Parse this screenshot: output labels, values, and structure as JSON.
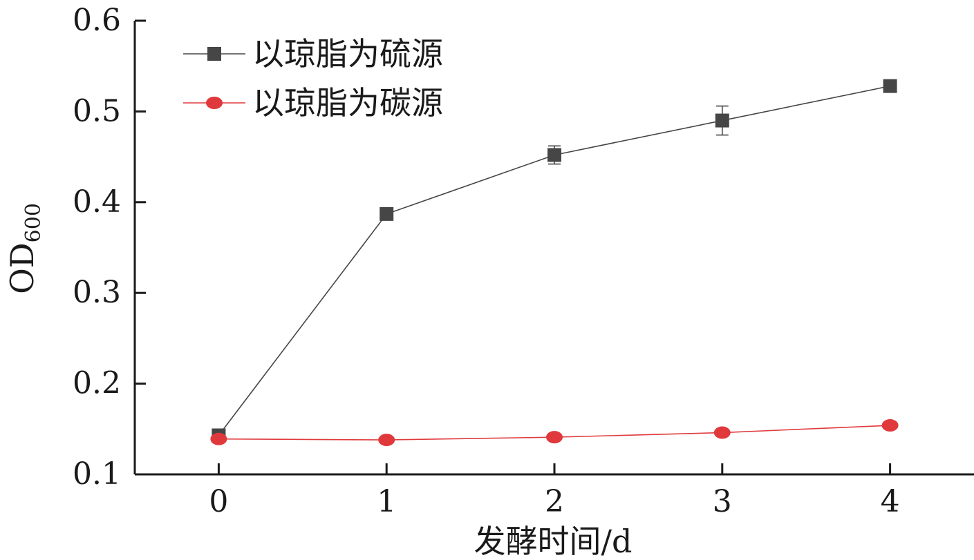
{
  "chart_data": {
    "type": "line",
    "x": [
      0,
      1,
      2,
      3,
      4
    ],
    "xlabel": "发酵时间/d",
    "ylabel_main": "OD",
    "ylabel_sub": "600",
    "xlim": [
      -0.5,
      4.5
    ],
    "ylim": [
      0.1,
      0.6
    ],
    "xticks": [
      "0",
      "1",
      "2",
      "3",
      "4"
    ],
    "yticks": [
      "0.1",
      "0.2",
      "0.3",
      "0.4",
      "0.5",
      "0.6"
    ],
    "grid": false,
    "legend_position": "top-left",
    "series": [
      {
        "name": "以琼脂为硫源",
        "marker": "square",
        "color": "#464646",
        "values": [
          0.143,
          0.387,
          0.452,
          0.49,
          0.528
        ],
        "errors": [
          0.0,
          0.006,
          0.01,
          0.016,
          0.0
        ]
      },
      {
        "name": "以琼脂为碳源",
        "marker": "circle",
        "color": "#e0393c",
        "values": [
          0.139,
          0.138,
          0.141,
          0.146,
          0.154
        ],
        "errors": [
          0.0,
          0.0,
          0.0,
          0.0,
          0.0
        ]
      }
    ]
  }
}
